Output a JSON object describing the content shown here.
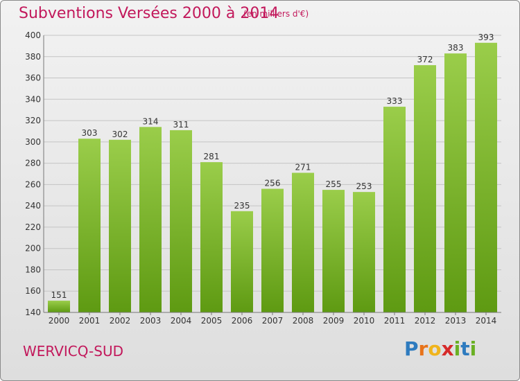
{
  "header": {
    "title": "Subventions Versées 2000 à 2014",
    "subtitle": "(en milliers d'€)"
  },
  "footer": {
    "commune": "WERVICQ-SUD",
    "logo_letters": [
      "P",
      "r",
      "o",
      "x",
      "i",
      "t",
      "i"
    ],
    "logo_colors": [
      "#2e7bbf",
      "#e8731a",
      "#f0b41c",
      "#d62a2a",
      "#6ab023",
      "#2e7bbf",
      "#6ab023"
    ]
  },
  "colors": {
    "bar_top": "#9acd4a",
    "bar_bottom": "#5e9a12",
    "grid": "#c4c4c4",
    "axis_text": "#333333"
  },
  "chart_data": {
    "type": "bar",
    "categories": [
      "2000",
      "2001",
      "2002",
      "2003",
      "2004",
      "2005",
      "2006",
      "2007",
      "2008",
      "2009",
      "2010",
      "2011",
      "2012",
      "2013",
      "2014"
    ],
    "values": [
      151,
      303,
      302,
      314,
      311,
      281,
      235,
      256,
      271,
      255,
      253,
      333,
      372,
      383,
      393
    ],
    "title": "Subventions Versées 2000 à 2014",
    "ylim": [
      140,
      400
    ],
    "yticks": [
      140,
      160,
      180,
      200,
      220,
      240,
      260,
      280,
      300,
      320,
      340,
      360,
      380,
      400
    ],
    "grid": true
  }
}
